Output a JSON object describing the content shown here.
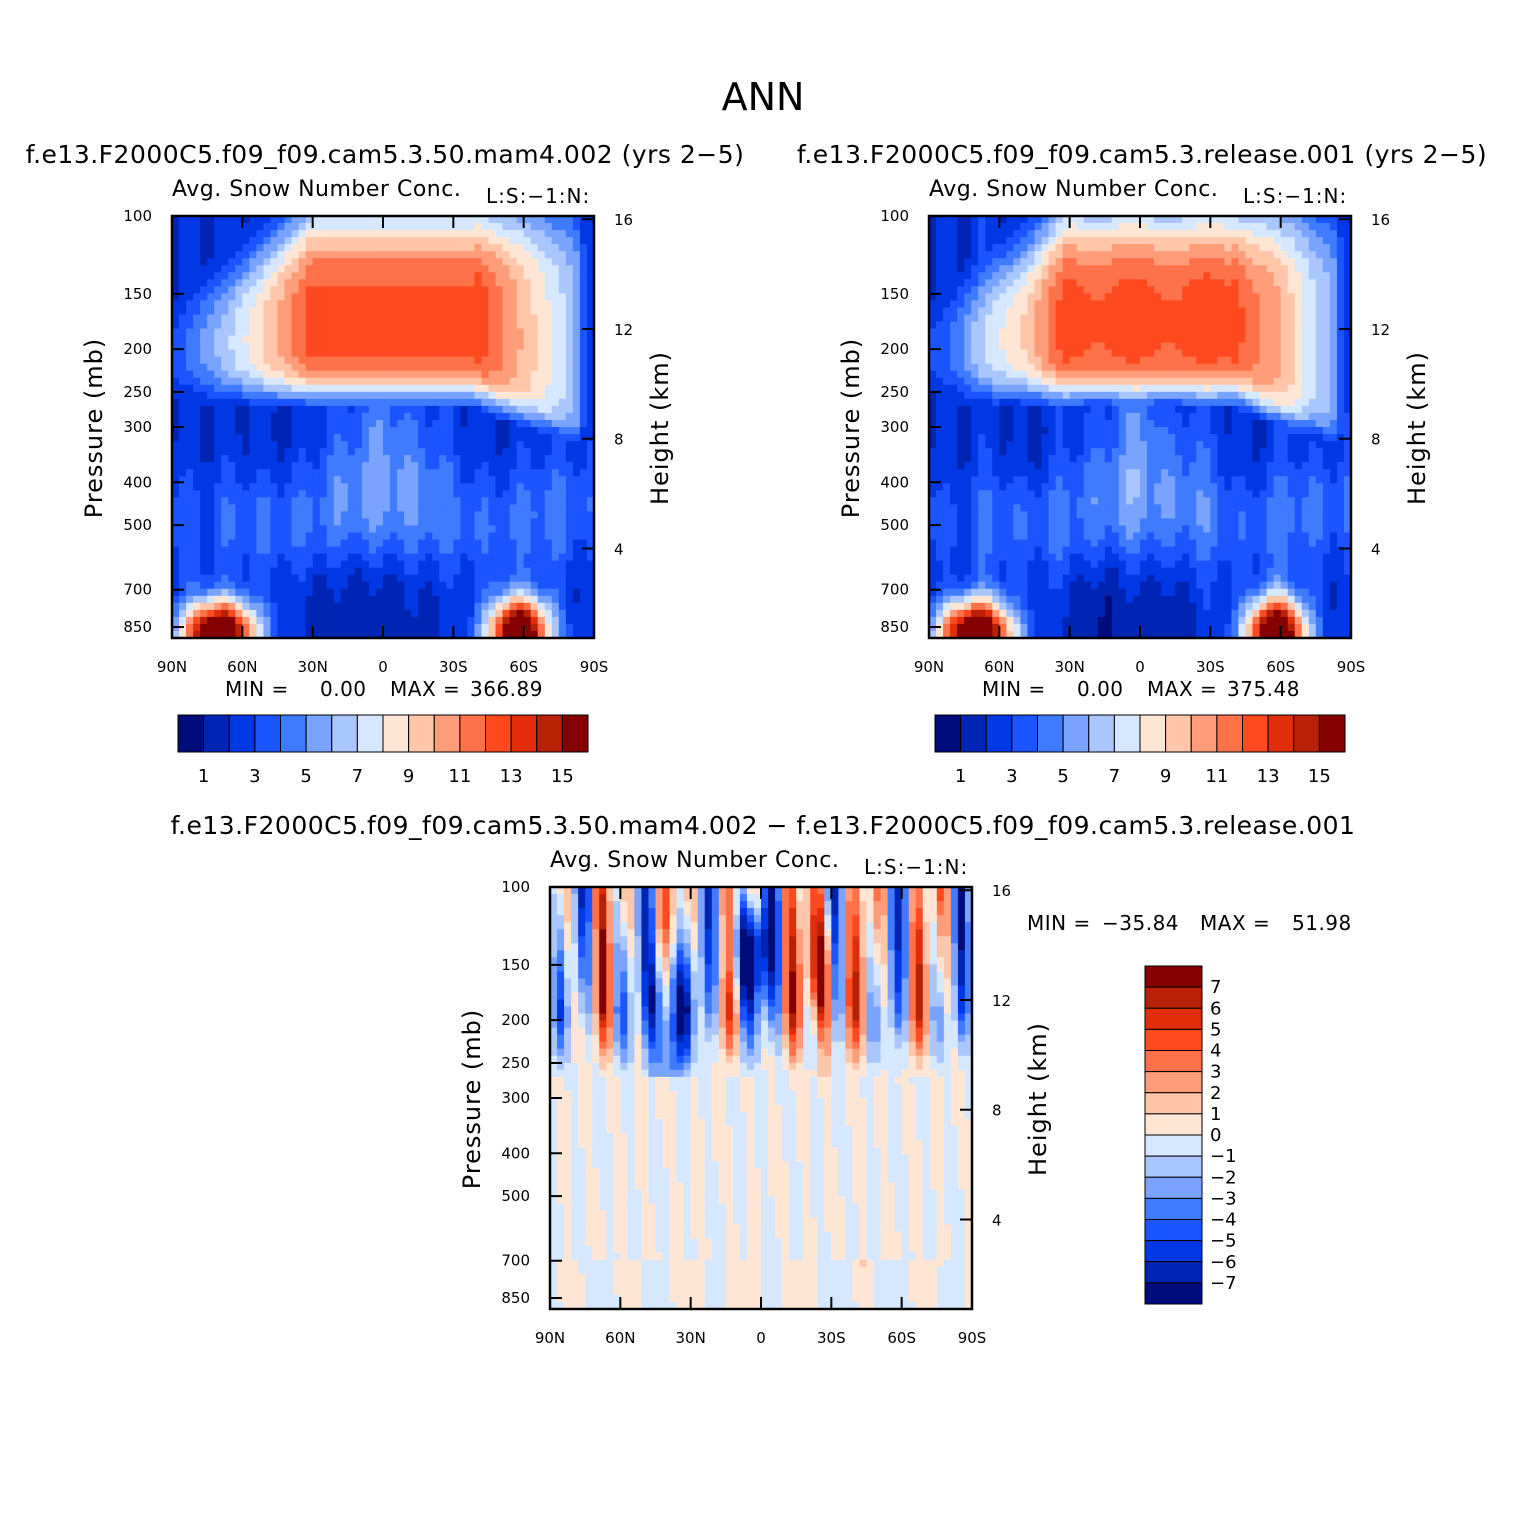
{
  "figure": {
    "main_title": "ANN",
    "colors": {
      "seq": [
        "#000c7a",
        "#0024b3",
        "#0038e6",
        "#1b55ff",
        "#3f7bff",
        "#7aa3ff",
        "#a9c6ff",
        "#d6e8ff",
        "#ffe6d4",
        "#ffc6aa",
        "#ff9d7a",
        "#ff7249",
        "#ff4a1f",
        "#e12d0a",
        "#b82106",
        "#850000"
      ],
      "diff": [
        "#000c7a",
        "#0024b3",
        "#0038e6",
        "#1b55ff",
        "#3f7bff",
        "#7aa3ff",
        "#a9c6ff",
        "#d6e8ff",
        "#ffe6d4",
        "#ffc6aa",
        "#ff9d7a",
        "#ff7249",
        "#ff4a1f",
        "#e12d0a",
        "#b82106",
        "#850000"
      ]
    }
  },
  "chart_data": [
    {
      "type": "heatmap",
      "case_title": "f.e13.F2000C5.f09_f09.cam5.3.50.mam4.002 (yrs 2−5)",
      "var_title": "Avg. Snow Number Conc.",
      "corner_label": "L:S:−1:N:",
      "ylabel": "Pressure (mb)",
      "y2label": "Height (km)",
      "x_ticks": [
        "90N",
        "60N",
        "30N",
        "0",
        "30S",
        "60S",
        "90S"
      ],
      "y_ticks": [
        "100",
        "150",
        "200",
        "250",
        "300",
        "400",
        "500",
        "700",
        "850"
      ],
      "y2_ticks": [
        "16",
        "12",
        "8",
        "4"
      ],
      "min_label": "MIN =",
      "min_value": "0.00",
      "max_label": "MAX =",
      "max_value": "366.89",
      "colorbar_labels": [
        "1",
        "3",
        "5",
        "7",
        "9",
        "11",
        "13",
        "15"
      ],
      "levels": [
        1,
        2,
        3,
        4,
        5,
        6,
        7,
        8,
        9,
        10,
        11,
        12,
        13,
        14,
        15
      ],
      "x_range": [
        "90N",
        "90S"
      ],
      "y_range": [
        100,
        900
      ]
    },
    {
      "type": "heatmap",
      "case_title": "f.e13.F2000C5.f09_f09.cam5.3.release.001 (yrs 2−5)",
      "var_title": "Avg. Snow Number Conc.",
      "corner_label": "L:S:−1:N:",
      "ylabel": "Pressure (mb)",
      "y2label": "Height (km)",
      "x_ticks": [
        "90N",
        "60N",
        "30N",
        "0",
        "30S",
        "60S",
        "90S"
      ],
      "y_ticks": [
        "100",
        "150",
        "200",
        "250",
        "300",
        "400",
        "500",
        "700",
        "850"
      ],
      "y2_ticks": [
        "16",
        "12",
        "8",
        "4"
      ],
      "min_label": "MIN =",
      "min_value": "0.00",
      "max_label": "MAX =",
      "max_value": "375.48",
      "colorbar_labels": [
        "1",
        "3",
        "5",
        "7",
        "9",
        "11",
        "13",
        "15"
      ],
      "levels": [
        1,
        2,
        3,
        4,
        5,
        6,
        7,
        8,
        9,
        10,
        11,
        12,
        13,
        14,
        15
      ],
      "x_range": [
        "90N",
        "90S"
      ],
      "y_range": [
        100,
        900
      ]
    },
    {
      "type": "heatmap",
      "case_title": "f.e13.F2000C5.f09_f09.cam5.3.50.mam4.002 − f.e13.F2000C5.f09_f09.cam5.3.release.001",
      "var_title": "Avg. Snow Number Conc.",
      "corner_label": "L:S:−1:N:",
      "ylabel": "Pressure (mb)",
      "y2label": "Height (km)",
      "x_ticks": [
        "90N",
        "60N",
        "30N",
        "0",
        "30S",
        "60S",
        "90S"
      ],
      "y_ticks": [
        "100",
        "150",
        "200",
        "250",
        "300",
        "400",
        "500",
        "700",
        "850"
      ],
      "y2_ticks": [
        "16",
        "12",
        "8",
        "4"
      ],
      "min_label": "MIN =",
      "min_value": "−35.84",
      "max_label": "MAX =",
      "max_value": "51.98",
      "colorbar_labels": [
        "7",
        "6",
        "5",
        "4",
        "3",
        "2",
        "1",
        "0",
        "−1",
        "−2",
        "−3",
        "−4",
        "−5",
        "−6",
        "−7"
      ],
      "levels": [
        -7,
        -6,
        -5,
        -4,
        -3,
        -2,
        -1,
        0,
        1,
        2,
        3,
        4,
        5,
        6,
        7
      ],
      "x_range": [
        "90N",
        "90S"
      ],
      "y_range": [
        100,
        900
      ]
    }
  ]
}
